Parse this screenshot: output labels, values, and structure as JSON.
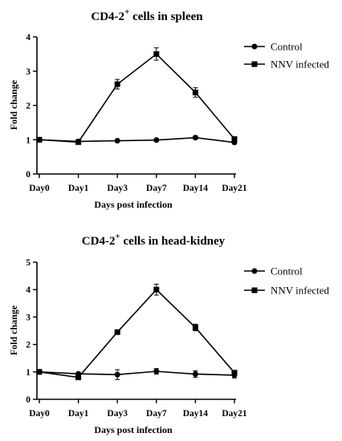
{
  "chart_data": [
    {
      "type": "line",
      "title": "CD4-2",
      "title_superscript": "+",
      "title_suffix": " cells in spleen",
      "xlabel": "Days post infection",
      "ylabel": "Fold change",
      "categories": [
        "Day0",
        "Day1",
        "Day3",
        "Day7",
        "Day14",
        "Day21"
      ],
      "ylim": [
        0,
        4
      ],
      "yticks": [
        "0",
        "1",
        "2",
        "3",
        "4"
      ],
      "grid": false,
      "legend_position": "top-right",
      "series": [
        {
          "name": "Control",
          "marker": "circle",
          "values": [
            1.0,
            0.95,
            0.97,
            0.99,
            1.06,
            0.92
          ],
          "errors": [
            0.03,
            0.03,
            0.04,
            0.04,
            0.05,
            0.04
          ]
        },
        {
          "name": "NNV infected",
          "marker": "square",
          "values": [
            1.0,
            0.93,
            2.62,
            3.5,
            2.38,
            1.02
          ],
          "errors": [
            0.03,
            0.04,
            0.14,
            0.18,
            0.14,
            0.06
          ]
        }
      ]
    },
    {
      "type": "line",
      "title": "CD4-2",
      "title_superscript": "+",
      "title_suffix": " cells in head-kidney",
      "xlabel": "Days post infection",
      "ylabel": "Fold change",
      "categories": [
        "Day0",
        "Day1",
        "Day3",
        "Day7",
        "Day14",
        "Day21"
      ],
      "ylim": [
        0,
        5
      ],
      "yticks": [
        "0",
        "1",
        "2",
        "3",
        "4",
        "5"
      ],
      "grid": false,
      "legend_position": "top-right",
      "series": [
        {
          "name": "Control",
          "marker": "circle",
          "values": [
            1.0,
            0.93,
            0.9,
            1.02,
            0.92,
            0.88
          ],
          "errors": [
            0.04,
            0.05,
            0.18,
            0.1,
            0.12,
            0.1
          ]
        },
        {
          "name": "NNV infected",
          "marker": "square",
          "values": [
            1.0,
            0.8,
            2.45,
            4.0,
            2.62,
            0.97
          ],
          "errors": [
            0.04,
            0.06,
            0.08,
            0.2,
            0.12,
            0.06
          ]
        }
      ]
    }
  ]
}
